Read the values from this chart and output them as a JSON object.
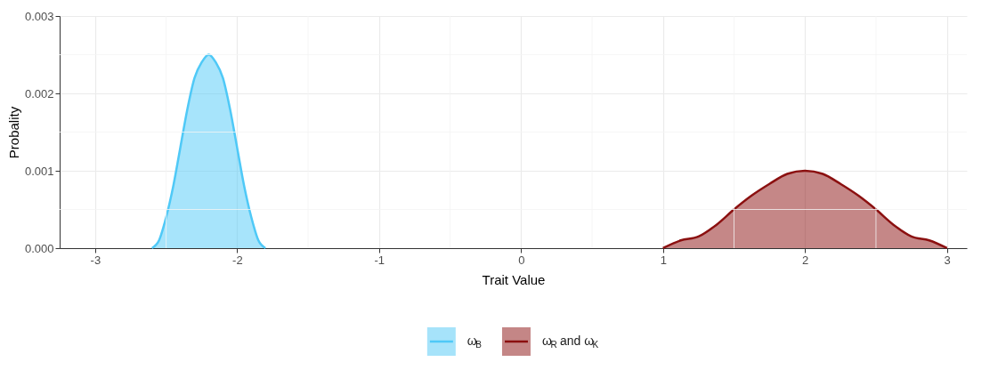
{
  "chart_data": {
    "type": "area",
    "xlabel": "Trait Value",
    "ylabel": "Probality",
    "xlim": [
      -3.25,
      3.14
    ],
    "xticks": [
      -3,
      -2,
      -1,
      0,
      1,
      2,
      3
    ],
    "ylim": [
      0,
      0.003
    ],
    "yticks": [
      {
        "value": 0,
        "label": "0.000"
      },
      {
        "value": 0.001,
        "label": "0.001"
      },
      {
        "value": 0.002,
        "label": "0.002"
      },
      {
        "value": 0.003,
        "label": "0.003"
      }
    ],
    "grid": true,
    "legend": "bottom",
    "series": [
      {
        "name": "ω$_{B}$",
        "color": "#4fc9f7",
        "x": [
          -2.6,
          -2.55,
          -2.5,
          -2.45,
          -2.4,
          -2.35,
          -2.3,
          -2.25,
          -2.2,
          -2.15,
          -2.1,
          -2.05,
          -2.0,
          -1.95,
          -1.9,
          -1.85,
          -1.8
        ],
        "values": [
          0,
          0.0001,
          0.0004,
          0.0008,
          0.0013,
          0.0018,
          0.0022,
          0.0024,
          0.0025,
          0.0024,
          0.0022,
          0.0018,
          0.0013,
          0.0008,
          0.0004,
          0.0001,
          0
        ]
      },
      {
        "name": "ω$_{R}$ and ω$_{K}$",
        "color": "#8b1010",
        "x": [
          1.0,
          1.125,
          1.25,
          1.375,
          1.5,
          1.625,
          1.75,
          1.875,
          2.0,
          2.125,
          2.25,
          2.375,
          2.5,
          2.625,
          2.75,
          2.875,
          3.0
        ],
        "values": [
          0,
          0.0001,
          0.00015,
          0.0003,
          0.0005,
          0.00068,
          0.00083,
          0.00096,
          0.001,
          0.00096,
          0.00083,
          0.00068,
          0.0005,
          0.0003,
          0.00015,
          0.0001,
          0
        ]
      }
    ]
  }
}
